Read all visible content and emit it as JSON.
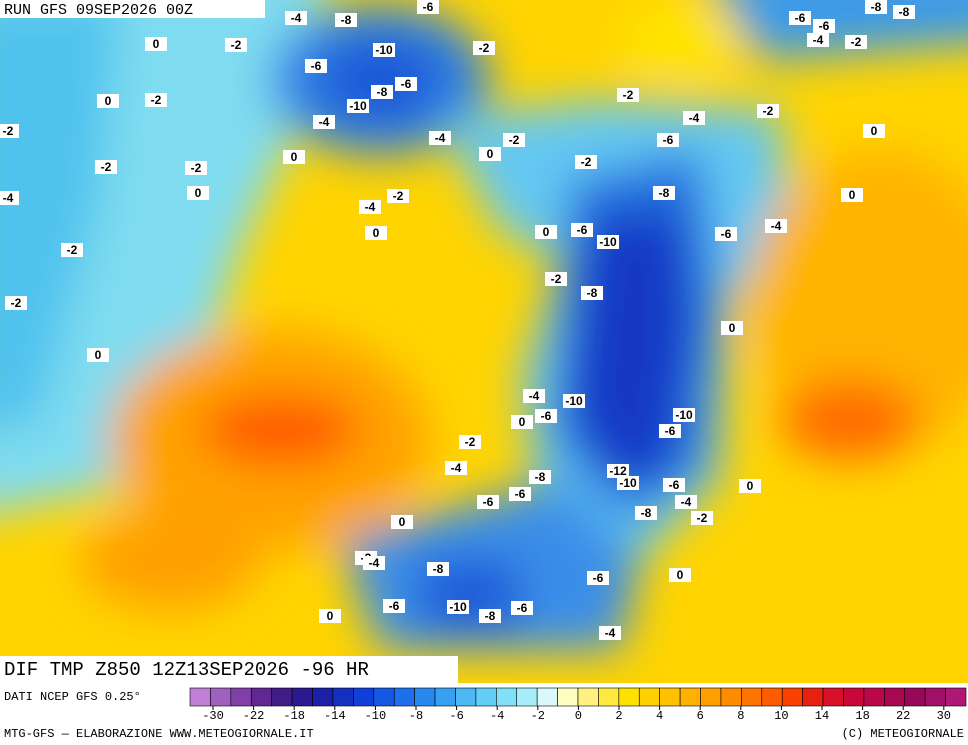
{
  "header": {
    "run": "RUN GFS 09SEP2026 00Z"
  },
  "map": {
    "title": "DIF TMP Z850 12Z13SEP2026 -96 HR",
    "contour_labels": [
      -4,
      -8,
      -6,
      -6,
      -6,
      -8,
      -8,
      -4,
      -2,
      0,
      -2,
      -10,
      -2,
      -6,
      -8,
      -6,
      0,
      -2,
      -10,
      -2,
      -2,
      -4,
      0,
      -2,
      -4,
      -4,
      -2,
      -6,
      0,
      0,
      -2,
      -2,
      -2,
      0,
      -4,
      -2,
      -8,
      0,
      -4,
      0,
      0,
      -6,
      -10,
      -6,
      -4,
      -2,
      -2,
      -8,
      -2,
      0,
      0,
      -4,
      -10,
      -6,
      0,
      -10,
      -6,
      -2,
      -4,
      -12,
      -10,
      -8,
      -6,
      0,
      -6,
      -6,
      -4,
      -8,
      -2,
      0,
      -2,
      -4,
      -8,
      -6,
      0,
      -6,
      -10,
      -8,
      -6,
      0,
      -4
    ]
  },
  "colorbar": {
    "source": "DATI NCEP GFS 0.25°",
    "ticks": [
      -30,
      -22,
      -18,
      -14,
      -10,
      -8,
      -6,
      -4,
      -2,
      0,
      2,
      4,
      6,
      8,
      10,
      14,
      18,
      22,
      30
    ]
  },
  "footer": {
    "left": "MTG-GFS — ELABORAZIONE WWW.METEOGIORNALE.IT",
    "right": "(C) METEOGIORNALE"
  }
}
